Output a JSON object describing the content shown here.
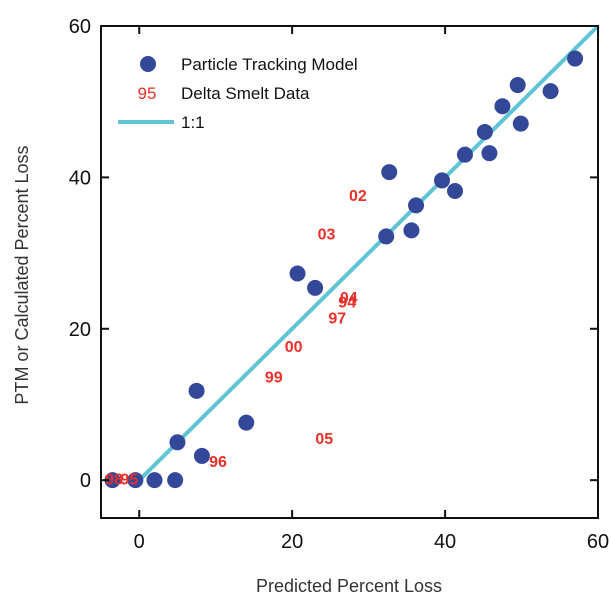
{
  "chart_data": {
    "type": "scatter",
    "title": "",
    "xlabel": "Predicted Percent Loss",
    "ylabel": "PTM or Calculated Percent Loss",
    "xlim": [
      -5,
      60
    ],
    "ylim": [
      -5,
      60
    ],
    "x_ticks": [
      0,
      20,
      40,
      60
    ],
    "y_ticks": [
      0,
      20,
      40,
      60
    ],
    "x_tick_labels": [
      "0",
      "20",
      "40",
      "60"
    ],
    "y_tick_labels": [
      "0",
      "20",
      "40",
      "60"
    ],
    "grid": false,
    "legend_position": "top-left",
    "series": [
      {
        "name": "Particle Tracking Model",
        "kind": "marker",
        "color": "#34489a",
        "points": [
          {
            "x": -3.5,
            "y": 0
          },
          {
            "x": -0.5,
            "y": 0
          },
          {
            "x": 2,
            "y": 0
          },
          {
            "x": 4.7,
            "y": 0
          },
          {
            "x": 5,
            "y": 5
          },
          {
            "x": 7.5,
            "y": 11.8
          },
          {
            "x": 8.2,
            "y": 3.2
          },
          {
            "x": 14,
            "y": 7.6
          },
          {
            "x": 20.7,
            "y": 27.3
          },
          {
            "x": 23,
            "y": 25.4
          },
          {
            "x": 32.3,
            "y": 32.2
          },
          {
            "x": 32.7,
            "y": 40.7
          },
          {
            "x": 35.6,
            "y": 33
          },
          {
            "x": 36.2,
            "y": 36.3
          },
          {
            "x": 39.6,
            "y": 39.6
          },
          {
            "x": 41.3,
            "y": 38.2
          },
          {
            "x": 42.6,
            "y": 43
          },
          {
            "x": 45.2,
            "y": 46
          },
          {
            "x": 45.8,
            "y": 43.2
          },
          {
            "x": 47.5,
            "y": 49.4
          },
          {
            "x": 49.5,
            "y": 52.2
          },
          {
            "x": 49.9,
            "y": 47.1
          },
          {
            "x": 53.8,
            "y": 51.4
          },
          {
            "x": 57,
            "y": 55.7
          }
        ]
      },
      {
        "name": "Delta Smelt Data",
        "kind": "text",
        "color": "#e8302a",
        "legend_symbol": "95",
        "points": [
          {
            "x": -3.3,
            "y": 0,
            "label": "98"
          },
          {
            "x": -1.3,
            "y": 0,
            "label": "95"
          },
          {
            "x": 10.3,
            "y": 2.3,
            "label": "96"
          },
          {
            "x": 17.6,
            "y": 13.5,
            "label": "99"
          },
          {
            "x": 20.2,
            "y": 17.5,
            "label": "00"
          },
          {
            "x": 25.9,
            "y": 21.3,
            "label": "97"
          },
          {
            "x": 27.2,
            "y": 23.4,
            "label": "94"
          },
          {
            "x": 27.4,
            "y": 24,
            "label": "04"
          },
          {
            "x": 24.2,
            "y": 5.4,
            "label": "05"
          },
          {
            "x": 24.5,
            "y": 32.4,
            "label": "03"
          },
          {
            "x": 28.6,
            "y": 37.5,
            "label": "02"
          }
        ]
      },
      {
        "name": "1:1",
        "kind": "line",
        "color": "#5fc4d4",
        "points": [
          {
            "x": 0,
            "y": 0
          },
          {
            "x": 60,
            "y": 60
          }
        ]
      }
    ]
  }
}
